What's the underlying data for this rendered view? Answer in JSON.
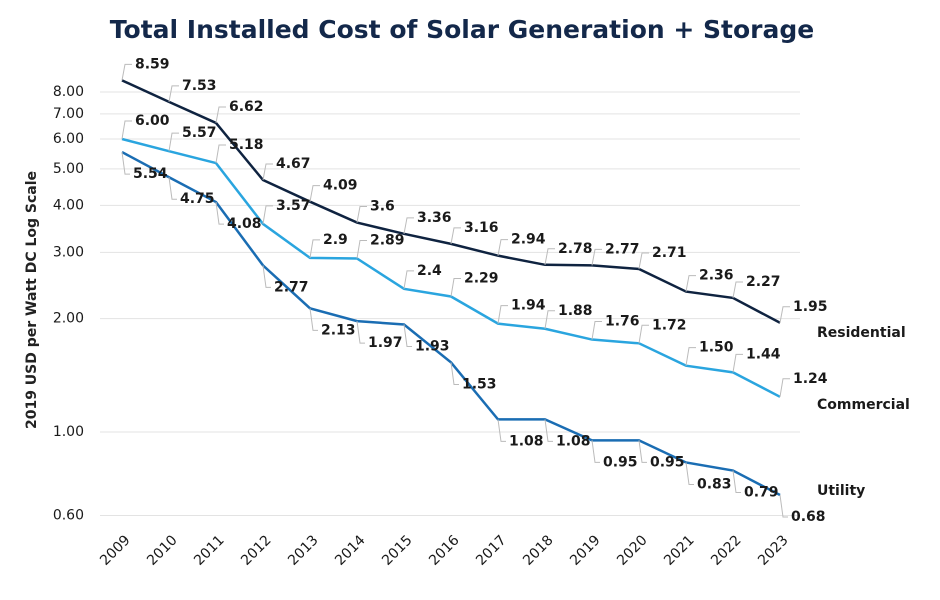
{
  "chart_data": {
    "type": "line",
    "title": "Total Installed Cost of Solar Generation + Storage",
    "y_label": "2019 USD per Watt DC Log Scale",
    "log_scale": true,
    "grid": true,
    "categories": [
      "2009",
      "2010",
      "2011",
      "2012",
      "2013",
      "2014",
      "2015",
      "2016",
      "2017",
      "2018",
      "2019",
      "2020",
      "2021",
      "2022",
      "2023"
    ],
    "ylim": [
      0.6,
      10
    ],
    "yticks": [
      {
        "value": 0.6,
        "label": "0.60"
      },
      {
        "value": 1,
        "label": "1.00"
      },
      {
        "value": 2,
        "label": "2.00"
      },
      {
        "value": 3,
        "label": "3.00"
      },
      {
        "value": 4,
        "label": "4.00"
      },
      {
        "value": 5,
        "label": "5.00"
      },
      {
        "value": 6,
        "label": "6.00"
      },
      {
        "value": 7,
        "label": "7.00"
      },
      {
        "value": 8,
        "label": "8.00"
      }
    ],
    "series": [
      {
        "name": "Residential",
        "color": "#0f2340",
        "values": [
          8.59,
          7.53,
          6.62,
          4.67,
          4.09,
          3.6,
          3.36,
          3.16,
          2.94,
          2.78,
          2.77,
          2.71,
          2.36,
          2.27,
          1.95
        ],
        "value_labels": [
          "8.59",
          "7.53",
          "6.62",
          "4.67",
          "4.09",
          "3.6",
          "3.36",
          "3.16",
          "2.94",
          "2.78",
          "2.77",
          "2.71",
          "2.36",
          "2.27",
          "1.95"
        ]
      },
      {
        "name": "Commercial",
        "color": "#2aa5df",
        "values": [
          6,
          5.57,
          5.18,
          3.57,
          2.9,
          2.89,
          2.4,
          2.29,
          1.94,
          1.88,
          1.76,
          1.72,
          1.5,
          1.44,
          1.24
        ],
        "value_labels": [
          "6.00",
          "5.57",
          "5.18",
          "3.57",
          "2.9",
          "2.89",
          "2.4",
          "2.29",
          "1.94",
          "1.88",
          "1.76",
          "1.72",
          "1.50",
          "1.44",
          "1.24"
        ]
      },
      {
        "name": "Utility",
        "color": "#1a6db3",
        "values": [
          5.54,
          4.75,
          4.08,
          2.77,
          2.13,
          1.97,
          1.93,
          1.53,
          1.08,
          1.08,
          0.95,
          0.95,
          0.83,
          0.79,
          0.68
        ],
        "value_labels": [
          "5.54",
          "4.75",
          "4.08",
          "2.77",
          "2.13",
          "1.97",
          "1.93",
          "1.53",
          "1.08",
          "1.08",
          "0.95",
          "0.95",
          "0.83",
          "0.79",
          "0.68"
        ]
      }
    ]
  }
}
